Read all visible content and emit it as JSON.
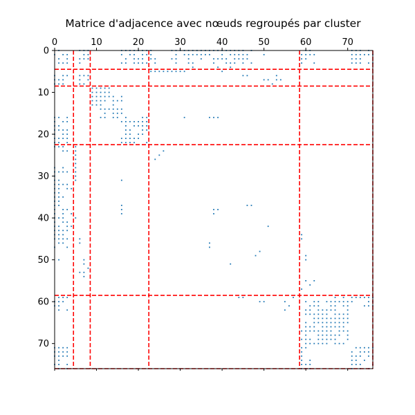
{
  "chart_data": {
    "type": "heatmap",
    "title": "Matrice d'adjacence avec nœuds regroupés par cluster",
    "xlabel": "",
    "ylabel": "",
    "n_nodes": 77,
    "xlim": [
      0,
      76
    ],
    "ylim": [
      76,
      0
    ],
    "x_ticks": [
      0,
      10,
      20,
      30,
      40,
      50,
      60,
      70
    ],
    "y_ticks": [
      0,
      10,
      20,
      30,
      40,
      50,
      60,
      70
    ],
    "x_tick_position": "top",
    "marker": "point",
    "colors": {
      "points": "#1f77b4",
      "cluster_lines": "#ff0000",
      "frame": "#000000"
    },
    "cluster_boundaries": [
      4.5,
      8.5,
      22.5,
      58.5
    ],
    "blocks": [
      {
        "rows": [
          0,
          3
        ],
        "cols": [
          0,
          3
        ]
      },
      {
        "rows": [
          0,
          3
        ],
        "cols": [
          6,
          8
        ]
      },
      {
        "rows": [
          0,
          3
        ],
        "cols": [
          16,
          24
        ]
      },
      {
        "rows": [
          0,
          3
        ],
        "cols": [
          28,
          36
        ]
      },
      {
        "rows": [
          0,
          3
        ],
        "cols": [
          39,
          47
        ]
      },
      {
        "rows": [
          0,
          3
        ],
        "cols": [
          59,
          62
        ]
      },
      {
        "rows": [
          0,
          3
        ],
        "cols": [
          71,
          75
        ]
      },
      {
        "rows": [
          6,
          8
        ],
        "cols": [
          0,
          3
        ]
      },
      {
        "rows": [
          6,
          8
        ],
        "cols": [
          6,
          8
        ]
      },
      {
        "rows": [
          9,
          16
        ],
        "cols": [
          9,
          16
        ]
      },
      {
        "rows": [
          16,
          22
        ],
        "cols": [
          17,
          22
        ]
      },
      {
        "rows": [
          16,
          22
        ],
        "cols": [
          0,
          2
        ]
      },
      {
        "rows": [
          59,
          70
        ],
        "cols": [
          60,
          70
        ]
      },
      {
        "rows": [
          71,
          76
        ],
        "cols": [
          0,
          3
        ]
      },
      {
        "rows": [
          71,
          76
        ],
        "cols": [
          59,
          61
        ]
      },
      {
        "rows": [
          71,
          76
        ],
        "cols": [
          71,
          75
        ]
      }
    ],
    "points": [
      [
        2,
        40
      ],
      [
        3,
        38
      ],
      [
        4,
        33
      ],
      [
        4,
        39
      ],
      [
        5,
        26
      ],
      [
        5,
        24
      ],
      [
        6,
        46
      ],
      [
        7,
        51
      ],
      [
        7,
        54
      ],
      [
        16,
        31
      ],
      [
        16,
        38
      ],
      [
        16,
        39
      ],
      [
        24,
        26
      ],
      [
        25,
        25
      ],
      [
        23,
        5
      ],
      [
        24,
        5
      ],
      [
        25,
        5
      ],
      [
        26,
        5
      ],
      [
        27,
        5
      ],
      [
        28,
        5
      ],
      [
        29,
        5
      ],
      [
        30,
        5
      ],
      [
        31,
        5
      ],
      [
        33,
        0
      ],
      [
        34,
        0
      ],
      [
        35,
        0
      ],
      [
        36,
        0
      ],
      [
        37,
        0
      ],
      [
        38,
        0
      ],
      [
        39,
        0
      ],
      [
        40,
        0
      ],
      [
        41,
        0
      ],
      [
        42,
        0
      ],
      [
        37,
        16
      ],
      [
        38,
        16
      ],
      [
        39,
        16
      ],
      [
        37,
        46
      ],
      [
        37,
        47
      ],
      [
        38,
        38
      ],
      [
        39,
        38
      ],
      [
        44,
        1
      ],
      [
        45,
        1
      ],
      [
        46,
        1
      ],
      [
        42,
        3
      ],
      [
        42,
        4
      ],
      [
        46,
        37
      ],
      [
        47,
        37
      ],
      [
        45,
        59
      ],
      [
        48,
        49
      ],
      [
        49,
        48
      ],
      [
        51,
        42
      ],
      [
        50,
        7
      ],
      [
        50,
        1
      ],
      [
        50,
        60
      ],
      [
        55,
        60
      ],
      [
        56,
        61
      ],
      [
        57,
        59
      ],
      [
        59,
        44
      ],
      [
        60,
        49
      ],
      [
        62,
        55
      ],
      [
        32,
        0
      ],
      [
        33,
        1
      ],
      [
        34,
        1
      ],
      [
        35,
        1
      ],
      [
        36,
        1
      ],
      [
        37,
        1
      ],
      [
        38,
        2
      ],
      [
        39,
        2
      ],
      [
        40,
        2
      ],
      [
        41,
        2
      ],
      [
        0,
        42
      ],
      [
        0,
        44
      ],
      [
        1,
        50
      ],
      [
        2,
        44
      ],
      [
        3,
        43
      ],
      [
        4,
        42
      ],
      [
        5,
        40
      ],
      [
        6,
        45
      ],
      [
        6,
        53
      ],
      [
        7,
        53
      ],
      [
        8,
        52
      ],
      [
        7,
        50
      ]
    ]
  }
}
